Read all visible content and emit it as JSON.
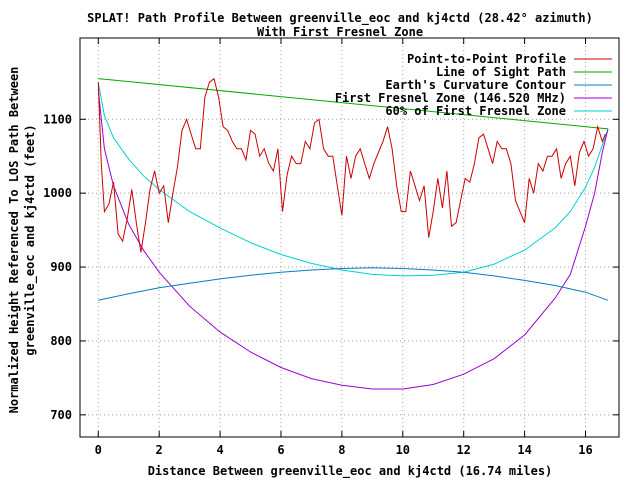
{
  "chart_data": {
    "type": "line",
    "title": "SPLAT! Path Profile Between greenville_eoc and kj4ctd (28.42° azimuth)",
    "subtitle": "With First Fresnel Zone",
    "xlabel": "Distance Between greenville_eoc and kj4ctd (16.74 miles)",
    "ylabel_line1": "Normalized Height Referenced To LOS Path Between",
    "ylabel_line2": "greenville_eoc and kj4ctd (feet)",
    "xlim": [
      -0.6,
      17.1
    ],
    "ylim": [
      670,
      1210
    ],
    "xticks": [
      0,
      2,
      4,
      6,
      8,
      10,
      12,
      14,
      16
    ],
    "xtick_labels": [
      "0",
      "2",
      "4",
      "6",
      "8",
      "10",
      "12",
      "14",
      "16"
    ],
    "yticks": [
      700,
      800,
      900,
      1000,
      1100
    ],
    "ytick_labels": [
      "700",
      "800",
      "900",
      "1000",
      "1100"
    ],
    "grid": true,
    "legend_position": "top-right",
    "series": [
      {
        "name": "Point-to-Point Profile",
        "color": "#cc0000",
        "x": [
          0,
          0.1,
          0.2,
          0.35,
          0.5,
          0.65,
          0.8,
          0.95,
          1.1,
          1.25,
          1.4,
          1.55,
          1.7,
          1.85,
          2.0,
          2.15,
          2.3,
          2.45,
          2.6,
          2.75,
          2.9,
          3.05,
          3.2,
          3.35,
          3.5,
          3.65,
          3.8,
          3.95,
          4.1,
          4.25,
          4.4,
          4.55,
          4.7,
          4.85,
          5.0,
          5.15,
          5.3,
          5.45,
          5.6,
          5.75,
          5.9,
          6.05,
          6.2,
          6.35,
          6.5,
          6.65,
          6.8,
          6.95,
          7.1,
          7.25,
          7.4,
          7.55,
          7.7,
          7.85,
          8.0,
          8.15,
          8.3,
          8.45,
          8.6,
          8.75,
          8.9,
          9.05,
          9.2,
          9.35,
          9.5,
          9.65,
          9.8,
          9.95,
          10.1,
          10.25,
          10.4,
          10.55,
          10.7,
          10.85,
          11.0,
          11.15,
          11.3,
          11.45,
          11.6,
          11.75,
          11.9,
          12.05,
          12.2,
          12.35,
          12.5,
          12.65,
          12.8,
          12.95,
          13.1,
          13.25,
          13.4,
          13.55,
          13.7,
          13.85,
          14.0,
          14.15,
          14.3,
          14.45,
          14.6,
          14.75,
          14.9,
          15.05,
          15.2,
          15.35,
          15.5,
          15.65,
          15.8,
          15.95,
          16.1,
          16.25,
          16.4,
          16.55,
          16.65
        ],
        "values": [
          1150,
          1040,
          975,
          985,
          1015,
          945,
          935,
          965,
          1005,
          960,
          920,
          960,
          1005,
          1030,
          1000,
          1010,
          960,
          1000,
          1035,
          1085,
          1100,
          1080,
          1060,
          1060,
          1130,
          1150,
          1155,
          1130,
          1090,
          1085,
          1070,
          1060,
          1060,
          1045,
          1085,
          1080,
          1050,
          1060,
          1040,
          1030,
          1060,
          975,
          1025,
          1050,
          1040,
          1040,
          1070,
          1060,
          1095,
          1100,
          1060,
          1050,
          1050,
          1010,
          970,
          1050,
          1020,
          1050,
          1060,
          1040,
          1020,
          1040,
          1055,
          1070,
          1090,
          1060,
          1010,
          975,
          975,
          1030,
          1010,
          990,
          1010,
          940,
          975,
          1020,
          980,
          1030,
          955,
          960,
          990,
          1020,
          1015,
          1040,
          1075,
          1080,
          1060,
          1040,
          1070,
          1060,
          1060,
          1040,
          990,
          975,
          960,
          1020,
          1000,
          1040,
          1030,
          1050,
          1050,
          1060,
          1020,
          1040,
          1050,
          1010,
          1055,
          1070,
          1050,
          1060,
          1090,
          1070,
          1080
        ]
      },
      {
        "name": "Line of Sight Path",
        "color": "#00aa00",
        "x": [
          0,
          16.74
        ],
        "values": [
          1155,
          1087
        ]
      },
      {
        "name": "Earth's Curvature Contour",
        "color": "#0080c0",
        "x": [
          0,
          1,
          2,
          3,
          4,
          5,
          6,
          7,
          8,
          9,
          10,
          11,
          12,
          13,
          14,
          15,
          16,
          16.74
        ],
        "values": [
          855,
          864,
          872,
          878,
          884,
          889,
          893,
          896,
          898,
          899,
          898,
          896,
          893,
          888,
          882,
          875,
          866,
          855
        ]
      },
      {
        "name": "First Fresnel Zone (146.520 MHz)",
        "color": "#9b00d3",
        "x": [
          0,
          0.2,
          0.5,
          1,
          1.5,
          2,
          3,
          4,
          5,
          6,
          7,
          8,
          9,
          10,
          11,
          12,
          13,
          14,
          15,
          15.5,
          16,
          16.3,
          16.55,
          16.74
        ],
        "values": [
          1140,
          1060,
          1010,
          958,
          922,
          893,
          847,
          812,
          785,
          764,
          749,
          740,
          735,
          735,
          741,
          755,
          776,
          808,
          858,
          890,
          955,
          1000,
          1055,
          1087
        ]
      },
      {
        "name": "60% of First Fresnel Zone",
        "color": "#00d0d0",
        "x": [
          0,
          0.2,
          0.5,
          1,
          1.5,
          2,
          3,
          4,
          5,
          6,
          7,
          8,
          9,
          10,
          11,
          12,
          13,
          14,
          15,
          15.5,
          16,
          16.3,
          16.55,
          16.74
        ],
        "values": [
          1150,
          1105,
          1075,
          1046,
          1023,
          1005,
          975,
          953,
          933,
          917,
          905,
          896,
          890,
          888,
          889,
          893,
          904,
          923,
          953,
          975,
          1008,
          1035,
          1065,
          1087
        ]
      }
    ]
  }
}
